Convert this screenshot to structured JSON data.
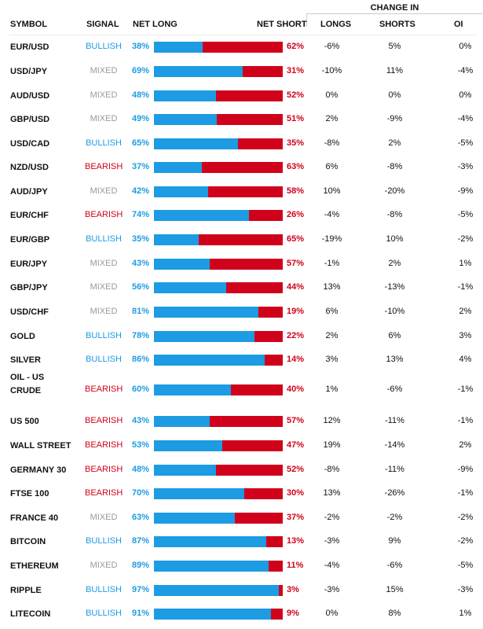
{
  "header": {
    "change_in": "CHANGE IN",
    "symbol": "SYMBOL",
    "signal": "SIGNAL",
    "net_long": "NET LONG",
    "net_short": "NET SHORT",
    "longs": "LONGS",
    "shorts": "SHORTS",
    "oi": "OI"
  },
  "colors": {
    "long": "#1d9be3",
    "short": "#d0021b",
    "mixed": "#999999"
  },
  "rows": [
    {
      "symbol": "EUR/USD",
      "signal": "BULLISH",
      "net_long": 38,
      "net_short": 62,
      "longs": "-6%",
      "shorts": "5%",
      "oi": "0%"
    },
    {
      "symbol": "USD/JPY",
      "signal": "MIXED",
      "net_long": 69,
      "net_short": 31,
      "longs": "-10%",
      "shorts": "11%",
      "oi": "-4%"
    },
    {
      "symbol": "AUD/USD",
      "signal": "MIXED",
      "net_long": 48,
      "net_short": 52,
      "longs": "0%",
      "shorts": "0%",
      "oi": "0%"
    },
    {
      "symbol": "GBP/USD",
      "signal": "MIXED",
      "net_long": 49,
      "net_short": 51,
      "longs": "2%",
      "shorts": "-9%",
      "oi": "-4%"
    },
    {
      "symbol": "USD/CAD",
      "signal": "BULLISH",
      "net_long": 65,
      "net_short": 35,
      "longs": "-8%",
      "shorts": "2%",
      "oi": "-5%"
    },
    {
      "symbol": "NZD/USD",
      "signal": "BEARISH",
      "net_long": 37,
      "net_short": 63,
      "longs": "6%",
      "shorts": "-8%",
      "oi": "-3%"
    },
    {
      "symbol": "AUD/JPY",
      "signal": "MIXED",
      "net_long": 42,
      "net_short": 58,
      "longs": "10%",
      "shorts": "-20%",
      "oi": "-9%"
    },
    {
      "symbol": "EUR/CHF",
      "signal": "BEARISH",
      "net_long": 74,
      "net_short": 26,
      "longs": "-4%",
      "shorts": "-8%",
      "oi": "-5%"
    },
    {
      "symbol": "EUR/GBP",
      "signal": "BULLISH",
      "net_long": 35,
      "net_short": 65,
      "longs": "-19%",
      "shorts": "10%",
      "oi": "-2%"
    },
    {
      "symbol": "EUR/JPY",
      "signal": "MIXED",
      "net_long": 43,
      "net_short": 57,
      "longs": "-1%",
      "shorts": "2%",
      "oi": "1%"
    },
    {
      "symbol": "GBP/JPY",
      "signal": "MIXED",
      "net_long": 56,
      "net_short": 44,
      "longs": "13%",
      "shorts": "-13%",
      "oi": "-1%"
    },
    {
      "symbol": "USD/CHF",
      "signal": "MIXED",
      "net_long": 81,
      "net_short": 19,
      "longs": "6%",
      "shorts": "-10%",
      "oi": "2%"
    },
    {
      "symbol": "GOLD",
      "signal": "BULLISH",
      "net_long": 78,
      "net_short": 22,
      "longs": "2%",
      "shorts": "6%",
      "oi": "3%"
    },
    {
      "symbol": "SILVER",
      "signal": "BULLISH",
      "net_long": 86,
      "net_short": 14,
      "longs": "3%",
      "shorts": "13%",
      "oi": "4%"
    },
    {
      "symbol": "OIL - US CRUDE",
      "signal": "BEARISH",
      "net_long": 60,
      "net_short": 40,
      "longs": "1%",
      "shorts": "-6%",
      "oi": "-1%"
    },
    {
      "symbol": "US 500",
      "signal": "BEARISH",
      "net_long": 43,
      "net_short": 57,
      "longs": "12%",
      "shorts": "-11%",
      "oi": "-1%"
    },
    {
      "symbol": "WALL STREET",
      "signal": "BEARISH",
      "net_long": 53,
      "net_short": 47,
      "longs": "19%",
      "shorts": "-14%",
      "oi": "2%"
    },
    {
      "symbol": "GERMANY 30",
      "signal": "BEARISH",
      "net_long": 48,
      "net_short": 52,
      "longs": "-8%",
      "shorts": "-11%",
      "oi": "-9%"
    },
    {
      "symbol": "FTSE 100",
      "signal": "BEARISH",
      "net_long": 70,
      "net_short": 30,
      "longs": "13%",
      "shorts": "-26%",
      "oi": "-1%"
    },
    {
      "symbol": "FRANCE 40",
      "signal": "MIXED",
      "net_long": 63,
      "net_short": 37,
      "longs": "-2%",
      "shorts": "-2%",
      "oi": "-2%"
    },
    {
      "symbol": "BITCOIN",
      "signal": "BULLISH",
      "net_long": 87,
      "net_short": 13,
      "longs": "-3%",
      "shorts": "9%",
      "oi": "-2%"
    },
    {
      "symbol": "ETHEREUM",
      "signal": "MIXED",
      "net_long": 89,
      "net_short": 11,
      "longs": "-4%",
      "shorts": "-6%",
      "oi": "-5%"
    },
    {
      "symbol": "RIPPLE",
      "signal": "BULLISH",
      "net_long": 97,
      "net_short": 3,
      "longs": "-3%",
      "shorts": "15%",
      "oi": "-3%"
    },
    {
      "symbol": "LITECOIN",
      "signal": "BULLISH",
      "net_long": 91,
      "net_short": 9,
      "longs": "0%",
      "shorts": "8%",
      "oi": "1%"
    }
  ]
}
